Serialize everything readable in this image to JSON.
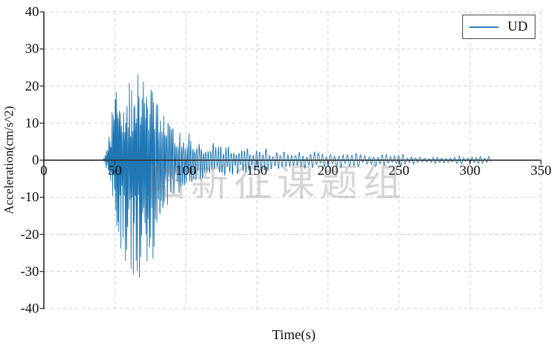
{
  "watermark": {
    "text": "陆新征课题组",
    "color": "#9a9a9a"
  },
  "style": {
    "line_color": "#1f77b4",
    "grid_color": "#cccccc",
    "axis_color": "#333333",
    "text_color": "#111111",
    "background": "#ffffff"
  },
  "chart_data": {
    "type": "line",
    "title": "",
    "xlabel": "Time(s)",
    "ylabel": "Acceleration(cm/s^2)",
    "xlim": [
      0,
      350
    ],
    "ylim": [
      -40,
      40
    ],
    "xticks": [
      0,
      50,
      100,
      150,
      200,
      250,
      300,
      350
    ],
    "yticks": [
      40,
      30,
      20,
      10,
      0,
      -10,
      -20,
      -30,
      -40
    ],
    "grid": true,
    "grid_style": "dashed",
    "legend": {
      "label": "UD",
      "position": "upper right"
    },
    "series": [
      {
        "name": "UD",
        "color": "#1f77b4",
        "t_start": 0,
        "t_end": 315,
        "dt": 0.2,
        "seed": 11,
        "peak_positive_approx": 23.5,
        "peak_negative_approx": -34,
        "envelope_note": "points are [time_s, positive_amp, negative_amp, dominant_period_s] read from the plot",
        "envelope": [
          [
            0,
            0.12,
            0.12,
            3
          ],
          [
            41,
            0.15,
            0.15,
            1.2
          ],
          [
            43,
            0.8,
            0.8,
            0.9
          ],
          [
            45,
            4,
            3.5,
            0.8
          ],
          [
            47,
            9,
            8,
            0.75
          ],
          [
            49,
            15,
            12,
            0.75
          ],
          [
            50,
            21,
            16,
            0.75
          ],
          [
            52,
            16,
            19,
            0.75
          ],
          [
            54,
            18,
            23,
            0.75
          ],
          [
            56,
            17,
            26,
            0.75
          ],
          [
            58,
            16,
            28,
            0.75
          ],
          [
            60,
            21,
            24,
            0.75
          ],
          [
            62,
            17,
            29,
            0.75
          ],
          [
            64,
            20,
            26,
            0.75
          ],
          [
            66,
            21,
            27,
            0.78
          ],
          [
            68,
            22,
            34,
            0.78
          ],
          [
            70,
            21,
            30,
            0.78
          ],
          [
            72,
            23.5,
            28,
            0.78
          ],
          [
            74,
            20,
            33,
            0.8
          ],
          [
            76,
            19,
            27,
            0.85
          ],
          [
            78,
            16,
            22,
            0.9
          ],
          [
            80,
            14,
            18,
            0.95
          ],
          [
            83,
            12,
            14,
            1
          ],
          [
            86,
            10,
            12,
            1.1
          ],
          [
            90,
            9,
            10,
            1.1
          ],
          [
            94,
            7.5,
            8.5,
            1.2
          ],
          [
            98,
            6.5,
            7,
            1.3
          ],
          [
            101,
            7.5,
            6.5,
            1.3
          ],
          [
            104,
            6,
            5.5,
            1.4
          ],
          [
            108,
            5,
            5,
            1.5
          ],
          [
            112,
            4.8,
            4.8,
            1.6
          ],
          [
            116,
            4.5,
            4.5,
            1.7
          ],
          [
            120,
            4.5,
            4.2,
            1.7
          ],
          [
            125,
            4.2,
            4,
            1.8
          ],
          [
            130,
            4,
            4,
            1.8
          ],
          [
            135,
            3.6,
            3.6,
            1.9
          ],
          [
            140,
            4,
            3.4,
            2
          ],
          [
            143,
            4.5,
            3.2,
            2
          ],
          [
            146,
            3.4,
            3,
            2.1
          ],
          [
            150,
            3,
            3,
            2.2
          ],
          [
            155,
            3,
            2.6,
            2.3
          ],
          [
            160,
            2.6,
            2.6,
            2.4
          ],
          [
            165,
            2.6,
            2.4,
            2.5
          ],
          [
            170,
            2.5,
            2.2,
            2.6
          ],
          [
            175,
            2.2,
            2,
            2.6
          ],
          [
            180,
            2,
            2,
            2.7
          ],
          [
            185,
            2,
            2,
            2.7
          ],
          [
            190,
            2.2,
            2,
            2.8
          ],
          [
            195,
            2,
            2,
            2.8
          ],
          [
            200,
            2,
            1.9,
            2.9
          ],
          [
            205,
            1.9,
            1.8,
            3
          ],
          [
            210,
            1.8,
            1.8,
            3
          ],
          [
            215,
            1.7,
            1.6,
            3
          ],
          [
            220,
            1.8,
            1.6,
            3
          ],
          [
            225,
            1.6,
            1.5,
            3
          ],
          [
            230,
            1.5,
            1.5,
            3
          ],
          [
            235,
            1.5,
            1.5,
            3
          ],
          [
            240,
            1.4,
            1.4,
            3
          ],
          [
            245,
            1.6,
            1.4,
            3
          ],
          [
            250,
            1.8,
            1.5,
            3
          ],
          [
            252,
            2.2,
            1.6,
            3
          ],
          [
            255,
            1.5,
            1.3,
            3
          ],
          [
            260,
            1.2,
            1.2,
            3
          ],
          [
            265,
            1,
            1,
            3
          ],
          [
            270,
            0.9,
            0.9,
            3
          ],
          [
            275,
            0.8,
            0.8,
            3
          ],
          [
            280,
            0.7,
            0.7,
            3
          ],
          [
            285,
            0.8,
            0.8,
            3
          ],
          [
            290,
            1.2,
            1,
            3
          ],
          [
            293,
            1.4,
            1,
            3
          ],
          [
            296,
            0.9,
            0.8,
            3
          ],
          [
            300,
            0.7,
            0.7,
            3
          ],
          [
            305,
            0.8,
            0.8,
            3
          ],
          [
            310,
            1.2,
            0.9,
            3
          ],
          [
            313,
            1,
            0.8,
            3
          ],
          [
            315,
            0.6,
            0.5,
            3
          ]
        ]
      }
    ]
  }
}
